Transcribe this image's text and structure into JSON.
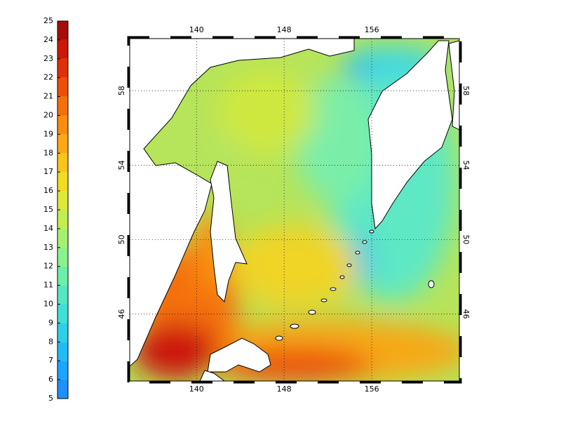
{
  "colorbar": {
    "ticks": [
      5,
      6,
      7,
      8,
      9,
      10,
      11,
      12,
      13,
      14,
      15,
      16,
      17,
      18,
      19,
      20,
      21,
      22,
      23,
      24,
      25
    ],
    "colors": [
      "#1e90ff",
      "#1aa6ff",
      "#22bcf5",
      "#2dd0e8",
      "#3ee0d8",
      "#55e8c0",
      "#6cefa8",
      "#88f38c",
      "#a6f070",
      "#c2ee50",
      "#dcea38",
      "#f0dc20",
      "#fac418",
      "#fca814",
      "#fa8c10",
      "#f4700c",
      "#ec5008",
      "#e03008",
      "#cc1808",
      "#a80c08"
    ]
  },
  "map": {
    "lon_range": [
      133.9,
      164
    ],
    "lat_range": [
      42.4,
      60.8
    ],
    "lon_ticks": [
      140,
      148,
      156
    ],
    "lat_ticks": [
      46,
      50,
      54,
      58
    ]
  }
}
